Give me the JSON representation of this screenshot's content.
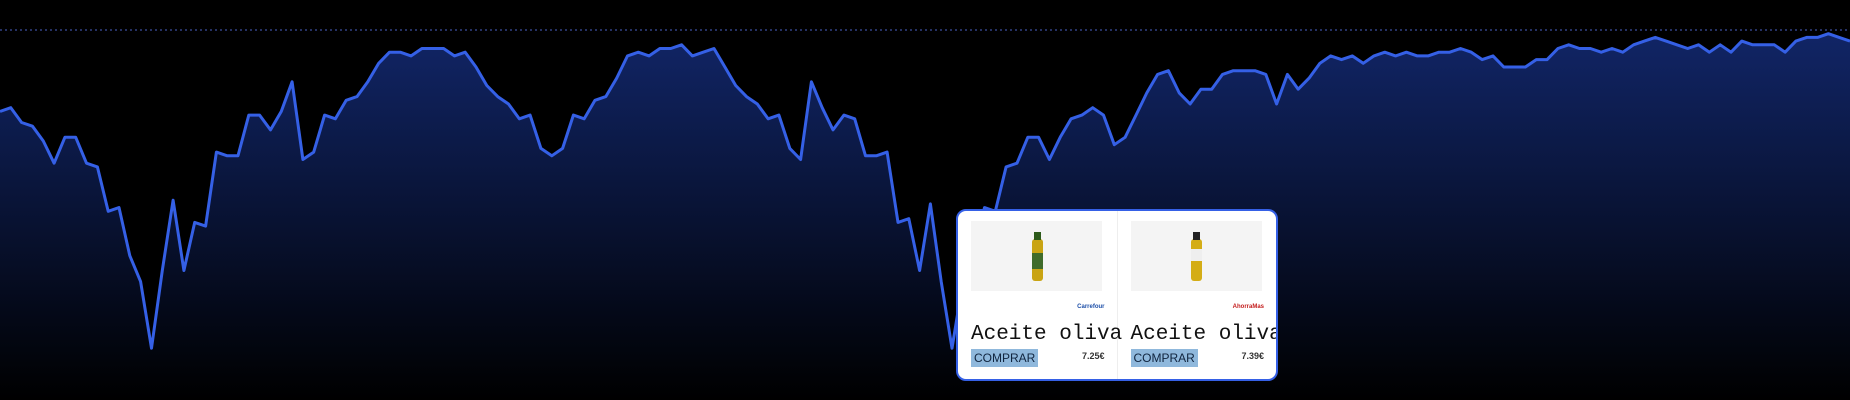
{
  "chart_data": {
    "type": "line",
    "color": "#3560e6",
    "ylim": [
      0,
      100
    ],
    "values": [
      78,
      79,
      75,
      74,
      70,
      64,
      71,
      71,
      64,
      63,
      51,
      52,
      39,
      32,
      14,
      35,
      54,
      35,
      48,
      47,
      67,
      66,
      66,
      77,
      77,
      73,
      78,
      86,
      65,
      67,
      77,
      76,
      81,
      82,
      86,
      91,
      94,
      94,
      93,
      95,
      95,
      95,
      93,
      94,
      90,
      85,
      82,
      80,
      76,
      77,
      68,
      66,
      68,
      77,
      76,
      81,
      82,
      87,
      93,
      94,
      93,
      95,
      95,
      96,
      93,
      94,
      95,
      90,
      85,
      82,
      80,
      76,
      77,
      68,
      65,
      86,
      79,
      73,
      77,
      76,
      66,
      66,
      67,
      48,
      49,
      35,
      53,
      32,
      14,
      32,
      40,
      52,
      51,
      63,
      64,
      71,
      71,
      65,
      71,
      76,
      77,
      79,
      77,
      69,
      71,
      77,
      83,
      88,
      89,
      83,
      80,
      84,
      84,
      88,
      89,
      89,
      89,
      88,
      80,
      88,
      84,
      87,
      91,
      93,
      92,
      93,
      91,
      93,
      94,
      93,
      94,
      93,
      93,
      94,
      94,
      95,
      94,
      92,
      93,
      90,
      90,
      90,
      92,
      92,
      95,
      96,
      95,
      95,
      94,
      95,
      94,
      96,
      97,
      98,
      97,
      96,
      95,
      96,
      94,
      96,
      94,
      97,
      96,
      96,
      96,
      94,
      97,
      98,
      98,
      99,
      98,
      97
    ]
  },
  "products": [
    {
      "store": "Carrefour",
      "name": "Aceite oliva",
      "button": "COMPRAR",
      "price": "7.25€"
    },
    {
      "store": "AhorraMas",
      "name": "Aceite oliva",
      "button": "COMPRAR",
      "price": "7.39€"
    }
  ]
}
